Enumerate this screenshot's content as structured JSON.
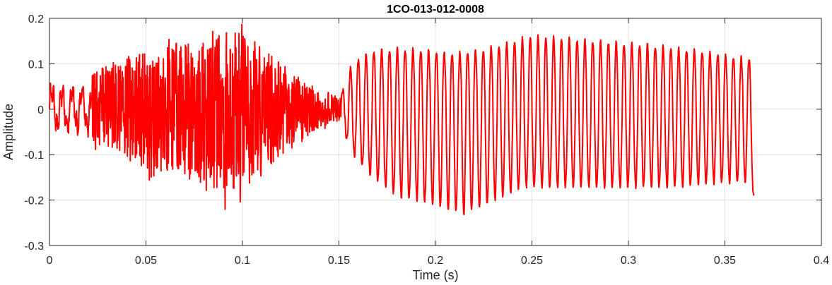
{
  "chart_data": {
    "type": "line",
    "title": "1CO-013-012-0008",
    "xlabel": "Time (s)",
    "ylabel": "Amplitude",
    "xlim": [
      0,
      0.4
    ],
    "ylim": [
      -0.3,
      0.2
    ],
    "x_ticks": [
      0,
      0.05,
      0.1,
      0.15,
      0.2,
      0.25,
      0.3,
      0.35,
      0.4
    ],
    "x_tick_labels": [
      "0",
      "0.05",
      "0.1",
      "0.15",
      "0.2",
      "0.25",
      "0.3",
      "0.35",
      "0.4"
    ],
    "y_ticks": [
      -0.3,
      -0.2,
      -0.1,
      0,
      0.1,
      0.2
    ],
    "y_tick_labels": [
      "-0.3",
      "-0.2",
      "-0.1",
      "0",
      "0.1",
      "0.2"
    ],
    "grid": true,
    "series": [
      {
        "color": "#ff0000",
        "x_start": 0,
        "x_end": 0.365,
        "description_points": [
          {
            "x": 0.0,
            "y": -0.04
          },
          {
            "x": 0.004,
            "y": 0.05
          },
          {
            "x": 0.012,
            "y": -0.07
          },
          {
            "x": 0.02,
            "y": 0.07
          },
          {
            "x": 0.03,
            "y": 0.1
          },
          {
            "x": 0.05,
            "y": -0.14
          },
          {
            "x": 0.07,
            "y": 0.14
          },
          {
            "x": 0.085,
            "y": -0.18
          },
          {
            "x": 0.095,
            "y": 0.19
          },
          {
            "x": 0.097,
            "y": -0.21
          },
          {
            "x": 0.11,
            "y": 0.19
          },
          {
            "x": 0.13,
            "y": 0.07
          },
          {
            "x": 0.15,
            "y": -0.02
          },
          {
            "x": 0.155,
            "y": -0.09
          },
          {
            "x": 0.165,
            "y": 0.12
          },
          {
            "x": 0.2,
            "y": -0.2
          },
          {
            "x": 0.215,
            "y": -0.23
          },
          {
            "x": 0.25,
            "y": 0.16
          },
          {
            "x": 0.3,
            "y": 0.14
          },
          {
            "x": 0.365,
            "y": -0.19
          }
        ]
      }
    ]
  }
}
